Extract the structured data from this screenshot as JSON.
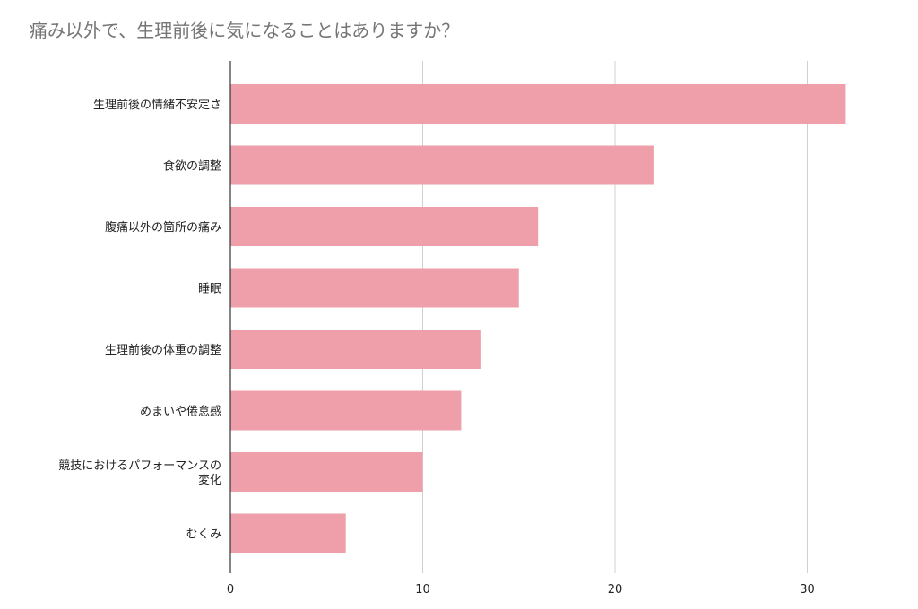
{
  "chart_data": {
    "type": "bar",
    "orientation": "horizontal",
    "title": "痛み以外で、生理前後に気になることはありますか？",
    "categories": [
      [
        "生理前後の情緒不安定さ"
      ],
      [
        "食欲の調整"
      ],
      [
        "腹痛以外の箇所の痛み"
      ],
      [
        "睡眠"
      ],
      [
        "生理前後の体重の調整"
      ],
      [
        "めまいや倦怠感"
      ],
      [
        "競技におけるパフォーマンスの",
        "変化"
      ],
      [
        "むくみ"
      ]
    ],
    "values": [
      32,
      22,
      16,
      15,
      13,
      12,
      10,
      6
    ],
    "xlim": [
      0,
      35
    ],
    "xticks": [
      "0",
      "10",
      "20",
      "30"
    ],
    "xtick_values": [
      0,
      10,
      20,
      30
    ],
    "grid": true,
    "bar_color": "#ee9fa9",
    "xlabel": "",
    "ylabel": ""
  }
}
